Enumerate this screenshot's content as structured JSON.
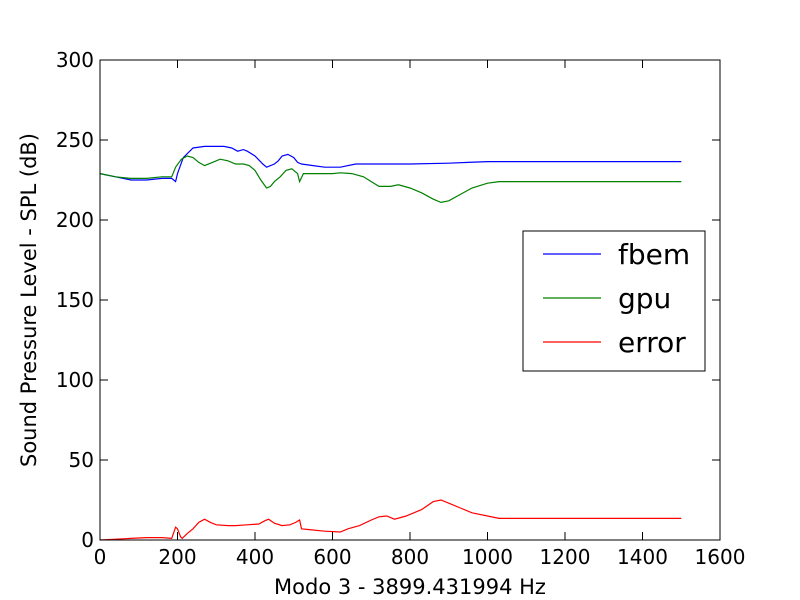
{
  "chart_data": {
    "type": "line",
    "title": "",
    "xlabel": "Modo 3 - 3899.431994 Hz",
    "ylabel": "Sound Pressure Level - SPL (dB)",
    "xlim": [
      0,
      1600
    ],
    "ylim": [
      0,
      300
    ],
    "xticks": [
      0,
      200,
      400,
      600,
      800,
      1000,
      1200,
      1400,
      1600
    ],
    "yticks": [
      0,
      50,
      100,
      150,
      200,
      250,
      300
    ],
    "grid": false,
    "legend_position": "center-right",
    "series": [
      {
        "name": "fbem",
        "color": "#0000ff",
        "points": [
          [
            0,
            229
          ],
          [
            40,
            227
          ],
          [
            80,
            225
          ],
          [
            120,
            225
          ],
          [
            160,
            226
          ],
          [
            185,
            226
          ],
          [
            195,
            224
          ],
          [
            200,
            229
          ],
          [
            215,
            239
          ],
          [
            240,
            245
          ],
          [
            270,
            246
          ],
          [
            300,
            246
          ],
          [
            320,
            246
          ],
          [
            340,
            245
          ],
          [
            355,
            243
          ],
          [
            370,
            244
          ],
          [
            380,
            243
          ],
          [
            400,
            240
          ],
          [
            420,
            235
          ],
          [
            430,
            233
          ],
          [
            450,
            235
          ],
          [
            460,
            237
          ],
          [
            470,
            240
          ],
          [
            485,
            241
          ],
          [
            500,
            239
          ],
          [
            510,
            236
          ],
          [
            520,
            235
          ],
          [
            550,
            234
          ],
          [
            580,
            233
          ],
          [
            620,
            233
          ],
          [
            660,
            235
          ],
          [
            700,
            235
          ],
          [
            800,
            235
          ],
          [
            900,
            235.5
          ],
          [
            950,
            236
          ],
          [
            1000,
            236.5
          ],
          [
            1100,
            236.5
          ],
          [
            1200,
            236.5
          ],
          [
            1300,
            236.5
          ],
          [
            1400,
            236.5
          ],
          [
            1500,
            236.5
          ]
        ]
      },
      {
        "name": "gpu",
        "color": "#008000",
        "points": [
          [
            0,
            229
          ],
          [
            40,
            227
          ],
          [
            80,
            226
          ],
          [
            120,
            226
          ],
          [
            160,
            227
          ],
          [
            185,
            227
          ],
          [
            195,
            233
          ],
          [
            210,
            238
          ],
          [
            225,
            240
          ],
          [
            240,
            239
          ],
          [
            255,
            236
          ],
          [
            270,
            234
          ],
          [
            290,
            236
          ],
          [
            310,
            238
          ],
          [
            330,
            237
          ],
          [
            350,
            235
          ],
          [
            370,
            235
          ],
          [
            385,
            234
          ],
          [
            400,
            231
          ],
          [
            415,
            225
          ],
          [
            430,
            220
          ],
          [
            440,
            221
          ],
          [
            450,
            224
          ],
          [
            465,
            227
          ],
          [
            480,
            231
          ],
          [
            495,
            232
          ],
          [
            510,
            229
          ],
          [
            515,
            224
          ],
          [
            525,
            229
          ],
          [
            560,
            229
          ],
          [
            600,
            229
          ],
          [
            620,
            229.5
          ],
          [
            650,
            229
          ],
          [
            680,
            227
          ],
          [
            700,
            224
          ],
          [
            720,
            221
          ],
          [
            750,
            221
          ],
          [
            770,
            222
          ],
          [
            800,
            220
          ],
          [
            830,
            217
          ],
          [
            860,
            213
          ],
          [
            880,
            211
          ],
          [
            900,
            212
          ],
          [
            930,
            216
          ],
          [
            960,
            220
          ],
          [
            1000,
            223
          ],
          [
            1030,
            224
          ],
          [
            1100,
            224
          ],
          [
            1200,
            224
          ],
          [
            1300,
            224
          ],
          [
            1400,
            224
          ],
          [
            1500,
            224
          ]
        ]
      },
      {
        "name": "error",
        "color": "#ff0000",
        "points": [
          [
            0,
            0
          ],
          [
            40,
            0.5
          ],
          [
            80,
            1
          ],
          [
            120,
            1.5
          ],
          [
            160,
            1.5
          ],
          [
            185,
            1
          ],
          [
            195,
            8
          ],
          [
            200,
            7
          ],
          [
            208,
            2
          ],
          [
            212,
            1
          ],
          [
            225,
            4
          ],
          [
            240,
            7
          ],
          [
            255,
            11
          ],
          [
            270,
            13
          ],
          [
            285,
            11
          ],
          [
            300,
            9.5
          ],
          [
            330,
            9
          ],
          [
            350,
            9
          ],
          [
            380,
            9.5
          ],
          [
            410,
            10
          ],
          [
            425,
            12
          ],
          [
            435,
            13
          ],
          [
            450,
            10.5
          ],
          [
            470,
            9
          ],
          [
            490,
            9.5
          ],
          [
            505,
            11
          ],
          [
            515,
            12.5
          ],
          [
            520,
            7
          ],
          [
            540,
            6.5
          ],
          [
            580,
            5.5
          ],
          [
            620,
            5
          ],
          [
            640,
            7
          ],
          [
            670,
            9
          ],
          [
            700,
            12.5
          ],
          [
            720,
            14.5
          ],
          [
            740,
            15
          ],
          [
            760,
            13
          ],
          [
            790,
            15
          ],
          [
            830,
            19
          ],
          [
            860,
            24
          ],
          [
            880,
            25
          ],
          [
            900,
            23
          ],
          [
            930,
            20
          ],
          [
            960,
            17
          ],
          [
            1000,
            15
          ],
          [
            1030,
            13.5
          ],
          [
            1100,
            13.5
          ],
          [
            1200,
            13.5
          ],
          [
            1300,
            13.5
          ],
          [
            1400,
            13.5
          ],
          [
            1500,
            13.5
          ]
        ]
      }
    ]
  }
}
